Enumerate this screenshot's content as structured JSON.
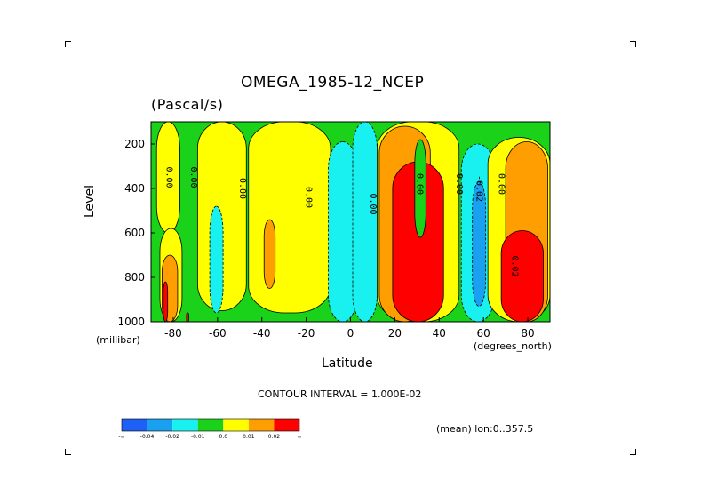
{
  "chart_data": {
    "type": "heatmap",
    "title": "OMEGA_1985-12_NCEP",
    "units": "(Pascal/s)",
    "xlabel": "Latitude",
    "x_units": "(degrees_north)",
    "ylabel": "Level",
    "y_units": "(millibar)",
    "xlim": [
      -90,
      90
    ],
    "ylim": [
      1000,
      100
    ],
    "x_ticks": [
      -80,
      -60,
      -40,
      -20,
      0,
      20,
      40,
      60,
      80
    ],
    "y_ticks": [
      200,
      400,
      600,
      800,
      1000
    ],
    "contour_interval_text": "CONTOUR INTERVAL = 1.000E-02",
    "mean_text": "(mean) lon:0..357.5",
    "contour_labels": [
      {
        "text": "0.00",
        "lat": -83,
        "lev": 350
      },
      {
        "text": "0.00",
        "lat": -72,
        "lev": 350
      },
      {
        "text": "0.00",
        "lat": -50,
        "lev": 400
      },
      {
        "text": "0.00",
        "lat": -20,
        "lev": 440
      },
      {
        "text": "0.00",
        "lat": 9,
        "lev": 470
      },
      {
        "text": "0.00",
        "lat": 30,
        "lev": 380
      },
      {
        "text": "0.00",
        "lat": 48,
        "lev": 380
      },
      {
        "text": "-0.02",
        "lat": 57,
        "lev": 400
      },
      {
        "text": "0.00",
        "lat": 67,
        "lev": 380
      },
      {
        "text": "0.02",
        "lat": 73,
        "lev": 750
      }
    ],
    "colorbar": {
      "colors": [
        "#1e5ff5",
        "#1aa0f0",
        "#19f0f0",
        "#19d219",
        "#ffff00",
        "#ff9e00",
        "#ff0000"
      ],
      "labels": [
        "-∞",
        "-0.04",
        "-0.02",
        "-0.01",
        "0.0",
        "0.01",
        "0.02",
        "∞"
      ]
    },
    "regions": [
      {
        "level": "green",
        "lat": [
          -90,
          90
        ],
        "lev": [
          100,
          1000
        ]
      },
      {
        "level": "yellow",
        "lat": [
          -87.5,
          -77
        ],
        "lev": [
          100,
          600
        ]
      },
      {
        "level": "yellow",
        "lat": [
          -86,
          -76
        ],
        "lev": [
          580,
          1000
        ]
      },
      {
        "level": "orange",
        "lat": [
          -85,
          -78
        ],
        "lev": [
          700,
          1000
        ]
      },
      {
        "level": "red",
        "lat": [
          -84.5,
          -82.5
        ],
        "lev": [
          820,
          1000
        ]
      },
      {
        "level": "red",
        "lat": [
          -74,
          -73
        ],
        "lev": [
          960,
          1000
        ]
      },
      {
        "level": "yellow",
        "lat": [
          -69,
          -47
        ],
        "lev": [
          100,
          950
        ]
      },
      {
        "level": "cyan",
        "lat": [
          -63.5,
          -57.5
        ],
        "lev": [
          480,
          960
        ]
      },
      {
        "level": "yellow",
        "lat": [
          -46,
          -9
        ],
        "lev": [
          100,
          960
        ]
      },
      {
        "level": "orange",
        "lat": [
          -39,
          -34
        ],
        "lev": [
          540,
          850
        ]
      },
      {
        "level": "cyan",
        "lat": [
          -10,
          3
        ],
        "lev": [
          190,
          1000
        ]
      },
      {
        "level": "blue",
        "lat": [
          2,
          10
        ],
        "lev": [
          130,
          1000
        ]
      },
      {
        "level": "cyan",
        "lat": [
          1,
          12
        ],
        "lev": [
          100,
          1000
        ]
      },
      {
        "level": "yellow",
        "lat": [
          12,
          49
        ],
        "lev": [
          100,
          1000
        ]
      },
      {
        "level": "orange",
        "lat": [
          13,
          36
        ],
        "lev": [
          120,
          1000
        ]
      },
      {
        "level": "red",
        "lat": [
          19,
          42
        ],
        "lev": [
          280,
          1000
        ]
      },
      {
        "level": "green",
        "lat": [
          29,
          34
        ],
        "lev": [
          180,
          620
        ]
      },
      {
        "level": "cyan",
        "lat": [
          50,
          65
        ],
        "lev": [
          200,
          1000
        ]
      },
      {
        "level": "blue",
        "lat": [
          55,
          61
        ],
        "lev": [
          370,
          930
        ]
      },
      {
        "level": "yellow",
        "lat": [
          62,
          90
        ],
        "lev": [
          170,
          1000
        ]
      },
      {
        "level": "orange",
        "lat": [
          70,
          89
        ],
        "lev": [
          190,
          1000
        ]
      },
      {
        "level": "red",
        "lat": [
          68,
          87
        ],
        "lev": [
          590,
          1000
        ]
      }
    ]
  }
}
